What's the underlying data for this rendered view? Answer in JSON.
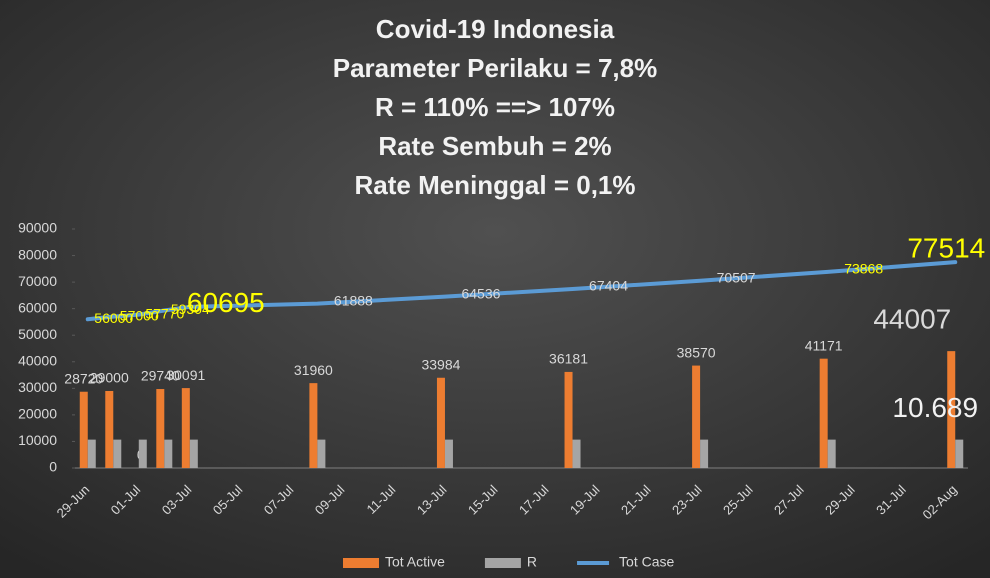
{
  "chart_data": {
    "type": "bar_line",
    "title": [
      "Covid-19 Indonesia",
      "Parameter Perilaku = 7,8%",
      "R = 110% ==> 107%",
      "Rate Sembuh = 2%",
      "Rate Meninggal = 0,1%"
    ],
    "categories": [
      "29-Jun",
      null,
      "01-Jul",
      null,
      "03-Jul",
      null,
      "05-Jul",
      null,
      "07-Jul",
      null,
      "09-Jul",
      null,
      "11-Jul",
      null,
      "13-Jul",
      null,
      "15-Jul",
      null,
      "17-Jul",
      null,
      "19-Jul",
      null,
      "21-Jul",
      null,
      "23-Jul",
      null,
      "25-Jul",
      null,
      "27-Jul",
      null,
      "29-Jul",
      null,
      "31-Jul",
      null,
      "02-Aug"
    ],
    "series": [
      {
        "name": "Tot Active",
        "color": "#ed7d31",
        "kind": "bar",
        "values": [
          28720,
          29000,
          0,
          29740,
          30091,
          null,
          null,
          null,
          null,
          31960,
          null,
          null,
          null,
          null,
          33984,
          null,
          null,
          null,
          null,
          36181,
          null,
          null,
          null,
          null,
          38570,
          null,
          null,
          null,
          null,
          41171,
          null,
          null,
          null,
          null,
          44007
        ]
      },
      {
        "name": "R",
        "color": "#a5a5a5",
        "kind": "bar",
        "values": [
          10689,
          10689,
          10689,
          10689,
          10689,
          null,
          null,
          null,
          null,
          10689,
          null,
          null,
          null,
          null,
          10689,
          null,
          null,
          null,
          null,
          10689,
          null,
          null,
          null,
          null,
          10689,
          null,
          null,
          null,
          null,
          10689,
          null,
          null,
          null,
          null,
          10689
        ],
        "value_labels": [
          null,
          null,
          null,
          null,
          null,
          null,
          null,
          null,
          null,
          null,
          null,
          null,
          null,
          null,
          null,
          null,
          null,
          null,
          null,
          null,
          null,
          null,
          null,
          null,
          null,
          null,
          null,
          null,
          null,
          null,
          null,
          null,
          null,
          null,
          "10.689"
        ]
      },
      {
        "name": "Tot Case",
        "color": "#5b9bd5",
        "kind": "line",
        "connect_gaps": true,
        "values": [
          56000,
          57000,
          57770,
          59304,
          60695,
          null,
          null,
          null,
          null,
          61888,
          null,
          null,
          null,
          null,
          64536,
          null,
          null,
          null,
          null,
          67404,
          null,
          null,
          null,
          null,
          70507,
          null,
          null,
          null,
          null,
          73868,
          null,
          null,
          null,
          null,
          77514
        ]
      }
    ],
    "ylim": [
      0,
      90000
    ],
    "yticks": [
      0,
      10000,
      20000,
      30000,
      40000,
      50000,
      60000,
      70000,
      80000,
      90000
    ],
    "legend": "bottom"
  }
}
